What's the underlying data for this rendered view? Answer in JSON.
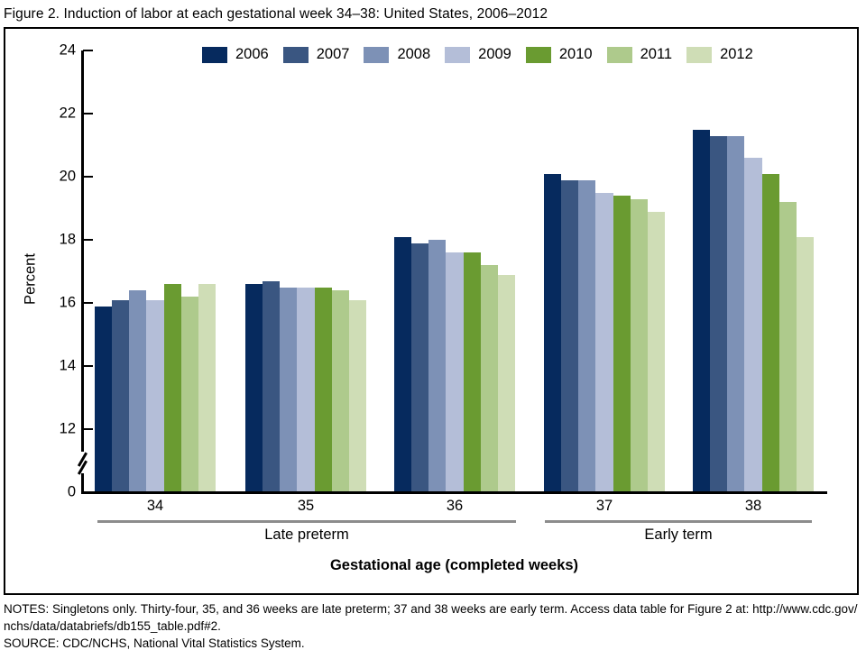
{
  "figure": {
    "title": "Figure 2. Induction of labor at each gestational week 34–38: United States, 2006–2012",
    "notes_line1": "NOTES: Singletons only. Thirty-four, 35, and 36 weeks are late preterm; 37 and 38 weeks are early term. Access data table for Figure 2 at: http://www.cdc.gov/",
    "notes_line2": "nchs/data/databriefs/db155_table.pdf#2.",
    "source": "SOURCE: CDC/NCHS, National Vital Statistics System."
  },
  "chart_data": {
    "type": "bar",
    "title": "Figure 2. Induction of labor at each gestational week 34–38: United States, 2006–2012",
    "ylabel": "Percent",
    "xlabel": "Gestational age (completed weeks)",
    "categories": [
      "34",
      "35",
      "36",
      "37",
      "38"
    ],
    "category_groups": [
      {
        "label": "Late preterm",
        "categories": [
          "34",
          "35",
          "36"
        ]
      },
      {
        "label": "Early term",
        "categories": [
          "37",
          "38"
        ]
      }
    ],
    "series": [
      {
        "name": "2006",
        "color": "#062a5e",
        "values": [
          15.9,
          16.6,
          18.1,
          20.1,
          21.5
        ]
      },
      {
        "name": "2007",
        "color": "#3a5681",
        "values": [
          16.1,
          16.7,
          17.9,
          19.9,
          21.3
        ]
      },
      {
        "name": "2008",
        "color": "#7d91b6",
        "values": [
          16.4,
          16.5,
          18.0,
          19.9,
          21.3
        ]
      },
      {
        "name": "2009",
        "color": "#b4bed8",
        "values": [
          16.1,
          16.5,
          17.6,
          19.5,
          20.6
        ]
      },
      {
        "name": "2010",
        "color": "#6a9b31",
        "values": [
          16.6,
          16.5,
          17.6,
          19.4,
          20.1
        ]
      },
      {
        "name": "2011",
        "color": "#aeca8c",
        "values": [
          16.2,
          16.4,
          17.2,
          19.3,
          19.2
        ]
      },
      {
        "name": "2012",
        "color": "#cfddb6",
        "values": [
          16.6,
          16.1,
          16.9,
          18.9,
          18.1
        ]
      }
    ],
    "y_ticks": [
      0,
      12,
      14,
      16,
      18,
      20,
      22,
      24
    ],
    "ylim": [
      0,
      24
    ],
    "axis_break": "between 0 and 12",
    "grid": false,
    "legend_position": "top"
  }
}
